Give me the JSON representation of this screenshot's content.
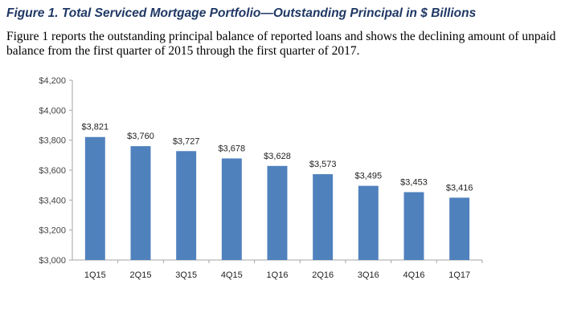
{
  "figure": {
    "title": "Figure 1. Total Serviced Mortgage Portfolio—Outstanding Principal in $ Billions",
    "description": "Figure 1 reports the outstanding principal balance of reported loans and shows the declining amount of unpaid balance from the first quarter of 2015 through the first quarter of 2017."
  },
  "colors": {
    "bar": "#4f81bd",
    "axis": "#a6a6a6",
    "title": "#1f3864"
  },
  "chart_data": {
    "type": "bar",
    "title": "Total Serviced Mortgage Portfolio—Outstanding Principal in $ Billions",
    "xlabel": "",
    "ylabel": "",
    "categories": [
      "1Q15",
      "2Q15",
      "3Q15",
      "4Q15",
      "1Q16",
      "2Q16",
      "3Q16",
      "4Q16",
      "1Q17"
    ],
    "values": [
      3821,
      3760,
      3727,
      3678,
      3628,
      3573,
      3495,
      3453,
      3416
    ],
    "data_labels": [
      "$3,821",
      "$3,760",
      "$3,727",
      "$3,678",
      "$3,628",
      "$3,573",
      "$3,495",
      "$3,453",
      "$3,416"
    ],
    "ylim": [
      3000,
      4200
    ],
    "y_ticks": [
      3000,
      3200,
      3400,
      3600,
      3800,
      4000,
      4200
    ],
    "y_tick_labels": [
      "$3,000",
      "$3,200",
      "$3,400",
      "$3,600",
      "$3,800",
      "$4,000",
      "$4,200"
    ],
    "grid": false,
    "legend": "none"
  }
}
